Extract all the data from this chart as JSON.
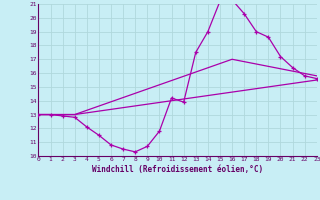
{
  "xlabel": "Windchill (Refroidissement éolien,°C)",
  "xlim": [
    0,
    23
  ],
  "ylim": [
    10,
    21
  ],
  "yticks": [
    10,
    11,
    12,
    13,
    14,
    15,
    16,
    17,
    18,
    19,
    20,
    21
  ],
  "xticks": [
    0,
    1,
    2,
    3,
    4,
    5,
    6,
    7,
    8,
    9,
    10,
    11,
    12,
    13,
    14,
    15,
    16,
    17,
    18,
    19,
    20,
    21,
    22,
    23
  ],
  "background_color": "#c8eef5",
  "grid_color": "#b0d8dc",
  "line_color": "#aa00aa",
  "line1_x": [
    0,
    1,
    2,
    3,
    4,
    5,
    6,
    7,
    8,
    9,
    10,
    11,
    12,
    13,
    14,
    15,
    16,
    17,
    18,
    19,
    20,
    21,
    22,
    23
  ],
  "line1_y": [
    13,
    13,
    12.9,
    12.8,
    12.1,
    11.5,
    10.8,
    10.5,
    10.3,
    10.7,
    11.8,
    14.2,
    13.9,
    17.5,
    19.0,
    21.2,
    21.3,
    20.3,
    19.0,
    18.6,
    17.2,
    16.4,
    15.8,
    15.6
  ],
  "line2_x": [
    0,
    3,
    23
  ],
  "line2_y": [
    13,
    13,
    15.5
  ],
  "line3_x": [
    0,
    3,
    16,
    23
  ],
  "line3_y": [
    13,
    13,
    17.0,
    15.8
  ],
  "tick_color": "#660066",
  "spine_color": "#660066"
}
